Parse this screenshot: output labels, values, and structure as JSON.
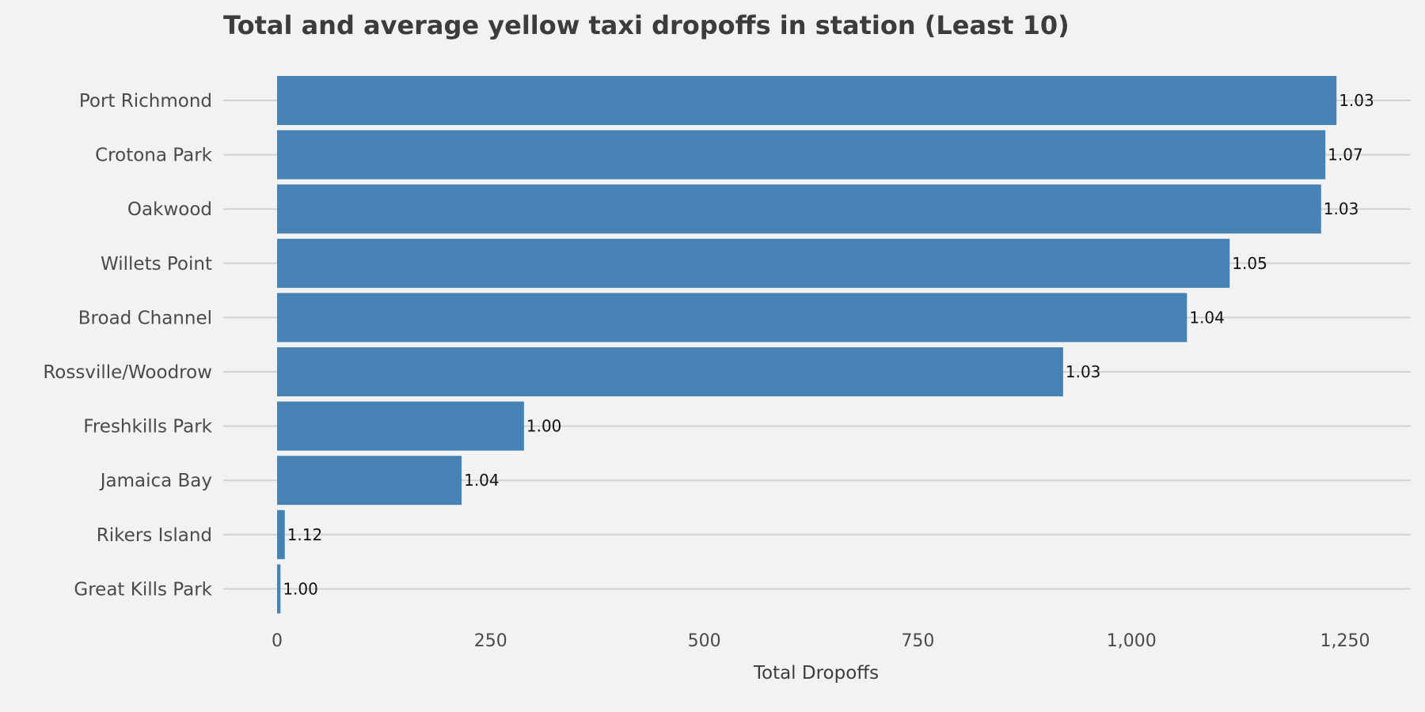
{
  "chart_data": {
    "type": "bar",
    "orientation": "horizontal",
    "title": "Total and average yellow taxi dropoffs in station (Least 10)",
    "xlabel": "Total Dropoffs",
    "ylabel": "",
    "xlim": [
      -63,
      1325
    ],
    "xticks": [
      0,
      250,
      500,
      750,
      1000,
      1250
    ],
    "xtick_labels": [
      "0",
      "250",
      "500",
      "750",
      "1,000",
      "1,250"
    ],
    "grid": "horizontal",
    "bar_color": "#4682b4",
    "background_color": "#f2f2f2",
    "categories": [
      "Port Richmond",
      "Crotona Park",
      "Oakwood",
      "Willets Point",
      "Broad Channel",
      "Rossville/Woodrow",
      "Freshkills Park",
      "Jamaica Bay",
      "Rikers Island",
      "Great Kills Park"
    ],
    "values": [
      1240,
      1227,
      1222,
      1115,
      1065,
      920,
      289,
      216,
      9,
      4
    ],
    "data_labels": [
      "1.03",
      "1.07",
      "1.03",
      "1.05",
      "1.04",
      "1.03",
      "1.00",
      "1.04",
      "1.12",
      "1.00"
    ]
  }
}
